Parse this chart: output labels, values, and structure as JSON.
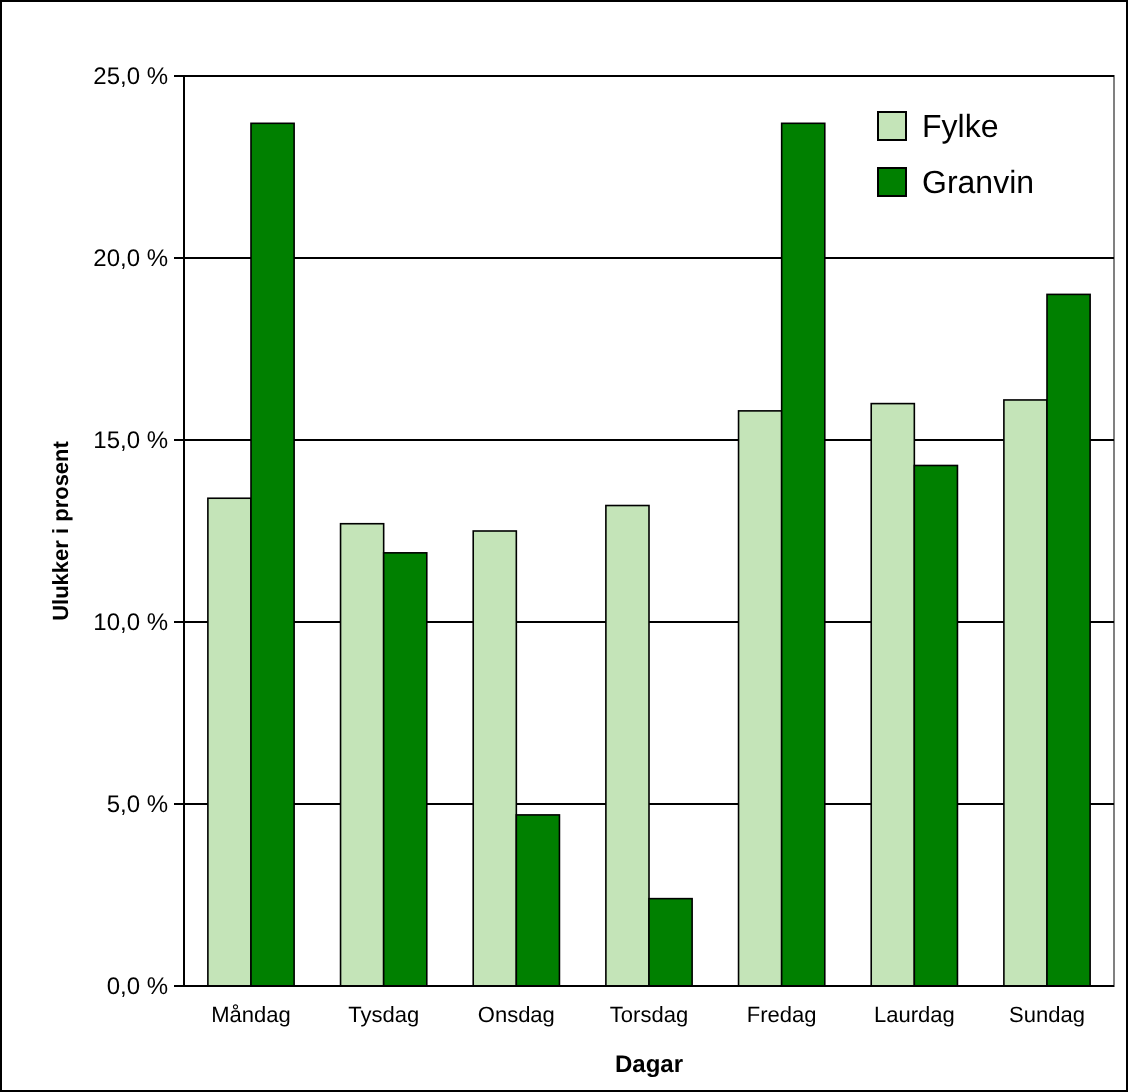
{
  "chart_data": {
    "type": "bar",
    "xlabel": "Dagar",
    "ylabel": "Ulukker i prosent",
    "categories": [
      "Måndag",
      "Tysdag",
      "Onsdag",
      "Torsdag",
      "Fredag",
      "Laurdag",
      "Sundag"
    ],
    "series": [
      {
        "name": "Fylke",
        "color": "#c4e4b8",
        "values": [
          13.4,
          12.7,
          12.5,
          13.2,
          15.8,
          16.0,
          16.1
        ]
      },
      {
        "name": "Granvin",
        "color": "#008000",
        "values": [
          23.7,
          11.9,
          4.7,
          2.4,
          23.7,
          14.3,
          19.0
        ]
      }
    ],
    "ylim": [
      0,
      25
    ],
    "yticks": [
      {
        "value": 0,
        "label": "0,0 %"
      },
      {
        "value": 5,
        "label": "5,0 %"
      },
      {
        "value": 10,
        "label": "10,0 %"
      },
      {
        "value": 15,
        "label": "15,0 %"
      },
      {
        "value": 20,
        "label": "20,0 %"
      },
      {
        "value": 25,
        "label": "25,0 %"
      }
    ],
    "grid": "y",
    "legend": "top right"
  }
}
